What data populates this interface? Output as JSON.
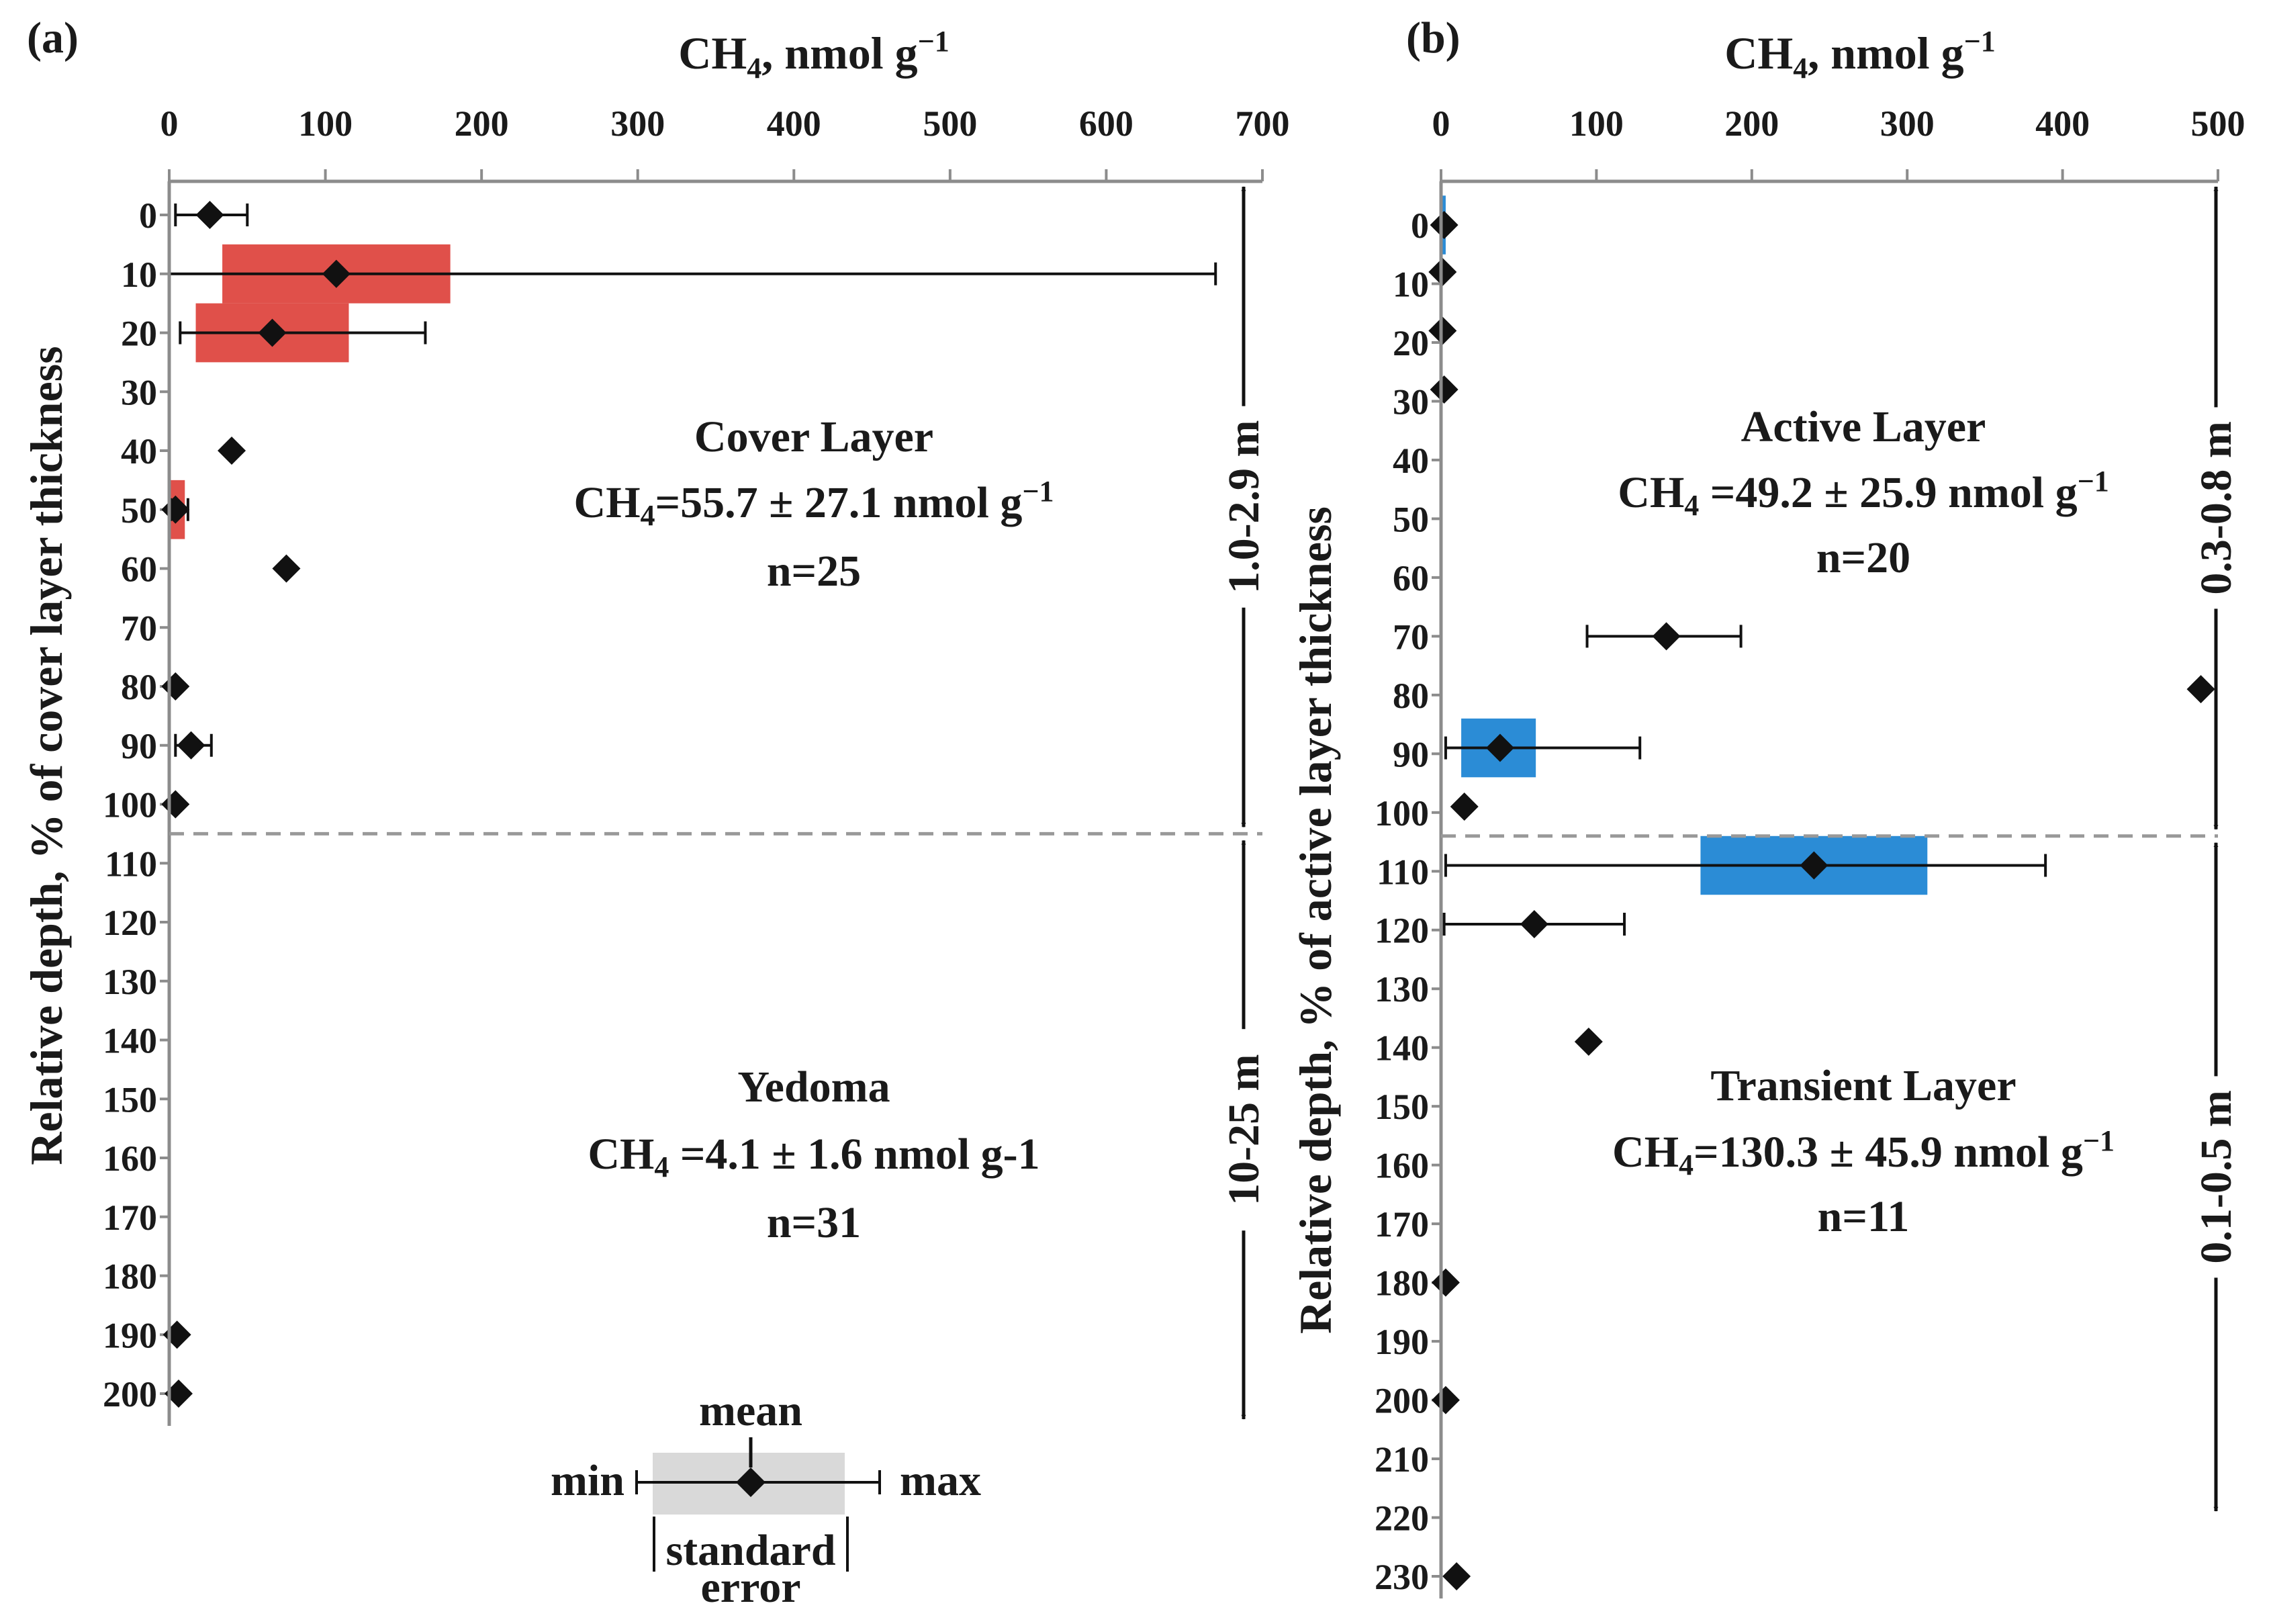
{
  "legend": {
    "mean": "mean",
    "min": "min",
    "max": "max",
    "se_line1": "standard",
    "se_line2": "error",
    "colors": {
      "box": "#d9d9d9"
    }
  },
  "chart_data": [
    {
      "type": "scatter",
      "panel_label": "(a)",
      "xlabel_main": "CH",
      "xlabel_sub": "4",
      "xlabel_rest": ", nmol g",
      "xlabel_sup": "−1",
      "ylabel": "Relative depth, % of cover layer thickness",
      "xlim": [
        0,
        700
      ],
      "xticks": [
        "0",
        "100",
        "200",
        "300",
        "400",
        "500",
        "600",
        "700"
      ],
      "ylim": [
        -5,
        202
      ],
      "yticks": [
        "0",
        "10",
        "20",
        "30",
        "40",
        "50",
        "60",
        "70",
        "80",
        "90",
        "100",
        "110",
        "120",
        "130",
        "140",
        "150",
        "160",
        "170",
        "180",
        "190",
        "200"
      ],
      "boundary_depth": 105,
      "box_color": "#e0504a",
      "points": [
        {
          "depth": 0,
          "mean": 26,
          "min": 4,
          "max": 50
        },
        {
          "depth": 10,
          "mean": 107,
          "min": 0,
          "max": 670,
          "se_lo": 34,
          "se_hi": 180
        },
        {
          "depth": 20,
          "mean": 66,
          "min": 7,
          "max": 164,
          "se_lo": 17,
          "se_hi": 115
        },
        {
          "depth": 40,
          "mean": 40
        },
        {
          "depth": 50,
          "mean": 4,
          "min": 1,
          "max": 12,
          "se_lo": 0,
          "se_hi": 10
        },
        {
          "depth": 60,
          "mean": 75
        },
        {
          "depth": 80,
          "mean": 4
        },
        {
          "depth": 90,
          "mean": 14,
          "min": 4,
          "max": 27
        },
        {
          "depth": 100,
          "mean": 4
        },
        {
          "depth": 190,
          "mean": 5
        },
        {
          "depth": 200,
          "mean": 6
        }
      ],
      "layers": [
        {
          "name": "Cover Layer",
          "stat_pre": "CH",
          "stat_sub": "4",
          "stat_post": "=55.7 ± 27.1 nmol g",
          "stat_sup": "−1",
          "n": "n=25",
          "thickness": "1.0-2.9 m",
          "from": -5,
          "to": 105
        },
        {
          "name": "Yedoma",
          "stat_pre": "CH",
          "stat_sub": "4",
          "stat_post": " =4.1 ± 1.6 nmol g-1",
          "stat_sup": "",
          "n": "n=31",
          "thickness": "10-25 m",
          "from": 105,
          "to": 216
        }
      ]
    },
    {
      "type": "scatter",
      "panel_label": "(b)",
      "xlabel_main": "CH",
      "xlabel_sub": "4",
      "xlabel_rest": ", nmol g",
      "xlabel_sup": "−1",
      "ylabel": "Relative depth, % of active layer thickness",
      "xlim": [
        0,
        500
      ],
      "xticks": [
        "0",
        "100",
        "200",
        "300",
        "400",
        "500"
      ],
      "ylim": [
        -7,
        232
      ],
      "yticks": [
        "0",
        "10",
        "20",
        "30",
        "40",
        "50",
        "60",
        "70",
        "80",
        "90",
        "100",
        "110",
        "120",
        "130",
        "140",
        "150",
        "160",
        "170",
        "180",
        "190",
        "200",
        "210",
        "220",
        "230"
      ],
      "boundary_depth": 104,
      "box_color": "#2b8cd6",
      "points": [
        {
          "depth": 0,
          "mean": 2,
          "se_lo": 0,
          "se_hi": 3
        },
        {
          "depth": 8,
          "mean": 1
        },
        {
          "depth": 18,
          "mean": 1
        },
        {
          "depth": 28,
          "mean": 2
        },
        {
          "depth": 70,
          "mean": 145,
          "min": 94,
          "max": 193
        },
        {
          "depth": 79,
          "mean": 489
        },
        {
          "depth": 89,
          "mean": 38,
          "min": 3,
          "max": 128,
          "se_lo": 13,
          "se_hi": 61
        },
        {
          "depth": 99,
          "mean": 15
        },
        {
          "depth": 109,
          "mean": 240,
          "min": 3,
          "max": 389,
          "se_lo": 167,
          "se_hi": 313
        },
        {
          "depth": 119,
          "mean": 60,
          "min": 2,
          "max": 118
        },
        {
          "depth": 139,
          "mean": 95
        },
        {
          "depth": 180,
          "mean": 3
        },
        {
          "depth": 200,
          "mean": 3
        },
        {
          "depth": 230,
          "mean": 10
        }
      ],
      "layers": [
        {
          "name": "Active Layer",
          "stat_pre": "CH",
          "stat_sub": "4",
          "stat_post": " =49.2 ± 25.9 nmol g",
          "stat_sup": "−1",
          "n": "n=20",
          "thickness": "0.3-0.8 m",
          "from": -7,
          "to": 104
        },
        {
          "name": "Transient Layer",
          "stat_pre": "CH",
          "stat_sub": "4",
          "stat_post": "=130.3 ± 45.9 nmol g",
          "stat_sup": "−1",
          "n": "n=11",
          "thickness": "0.1-0.5 m",
          "from": 104,
          "to": 215
        }
      ]
    }
  ]
}
